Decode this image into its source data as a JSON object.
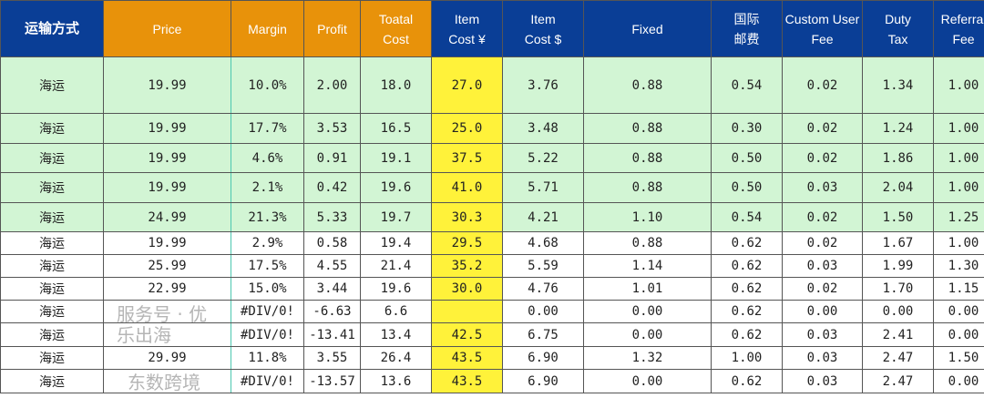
{
  "headers": [
    {
      "label": "运输方式",
      "style": "b"
    },
    {
      "label": "Price",
      "style": "o"
    },
    {
      "label": "Margin",
      "style": "o"
    },
    {
      "label": "Profit",
      "style": "o"
    },
    {
      "label": "Toatal\nCost",
      "style": "o"
    },
    {
      "label": "Item\nCost ¥",
      "style": "b"
    },
    {
      "label": "Item\nCost $",
      "style": "b"
    },
    {
      "label": "Fixed",
      "style": "b"
    },
    {
      "label": "国际\n邮费",
      "style": "b"
    },
    {
      "label": "Custom User\nFee",
      "style": "b"
    },
    {
      "label": "Duty\nTax",
      "style": "b"
    },
    {
      "label": "Referral\nFee",
      "style": "b"
    }
  ],
  "rows": [
    {
      "green": true,
      "cells": [
        "海运",
        "19.99",
        "10.0%",
        "2.00",
        "18.0",
        "27.0",
        "3.76",
        "0.88",
        "0.54",
        "0.02",
        "1.34",
        "1.00"
      ]
    },
    {
      "green": true,
      "cells": [
        "海运",
        "19.99",
        "17.7%",
        "3.53",
        "16.5",
        "25.0",
        "3.48",
        "0.88",
        "0.30",
        "0.02",
        "1.24",
        "1.00"
      ]
    },
    {
      "green": true,
      "cells": [
        "海运",
        "19.99",
        "4.6%",
        "0.91",
        "19.1",
        "37.5",
        "5.22",
        "0.88",
        "0.50",
        "0.02",
        "1.86",
        "1.00"
      ]
    },
    {
      "green": true,
      "cells": [
        "海运",
        "19.99",
        "2.1%",
        "0.42",
        "19.6",
        "41.0",
        "5.71",
        "0.88",
        "0.50",
        "0.03",
        "2.04",
        "1.00"
      ]
    },
    {
      "green": true,
      "cells": [
        "海运",
        "24.99",
        "21.3%",
        "5.33",
        "19.7",
        "30.3",
        "4.21",
        "1.10",
        "0.54",
        "0.02",
        "1.50",
        "1.25"
      ]
    },
    {
      "green": false,
      "cells": [
        "海运",
        "19.99",
        "2.9%",
        "0.58",
        "19.4",
        "29.5",
        "4.68",
        "0.88",
        "0.62",
        "0.02",
        "1.67",
        "1.00"
      ]
    },
    {
      "green": false,
      "cells": [
        "海运",
        "25.99",
        "17.5%",
        "4.55",
        "21.4",
        "35.2",
        "5.59",
        "1.14",
        "0.62",
        "0.03",
        "1.99",
        "1.30"
      ]
    },
    {
      "green": false,
      "cells": [
        "海运",
        "22.99",
        "15.0%",
        "3.44",
        "19.6",
        "30.0",
        "4.76",
        "1.01",
        "0.62",
        "0.02",
        "1.70",
        "1.15"
      ]
    },
    {
      "green": false,
      "cells": [
        "海运",
        "",
        "#DIV/0!",
        "-6.63",
        "6.6",
        "",
        "0.00",
        "0.00",
        "0.62",
        "0.00",
        "0.00",
        "0.00"
      ]
    },
    {
      "green": false,
      "cells": [
        "海运",
        "",
        "#DIV/0!",
        "-13.41",
        "13.4",
        "42.5",
        "6.75",
        "0.00",
        "0.62",
        "0.03",
        "2.41",
        "0.00"
      ]
    },
    {
      "green": false,
      "cells": [
        "海运",
        "29.99",
        "11.8%",
        "3.55",
        "26.4",
        "43.5",
        "6.90",
        "1.32",
        "1.00",
        "0.03",
        "2.47",
        "1.50"
      ]
    },
    {
      "green": false,
      "cells": [
        "海运",
        "",
        "#DIV/0!",
        "-13.57",
        "13.6",
        "43.5",
        "6.90",
        "0.00",
        "0.62",
        "0.03",
        "2.47",
        "0.00"
      ]
    }
  ],
  "watermarks": {
    "wechat": "服务号 · 优乐出海",
    "logo": "东数跨境"
  },
  "colors": {
    "header_blue": "#0a3e96",
    "header_orange": "#e8920a",
    "highlight_yellow": "#fff23a",
    "row_green": "#d2f5d4"
  }
}
